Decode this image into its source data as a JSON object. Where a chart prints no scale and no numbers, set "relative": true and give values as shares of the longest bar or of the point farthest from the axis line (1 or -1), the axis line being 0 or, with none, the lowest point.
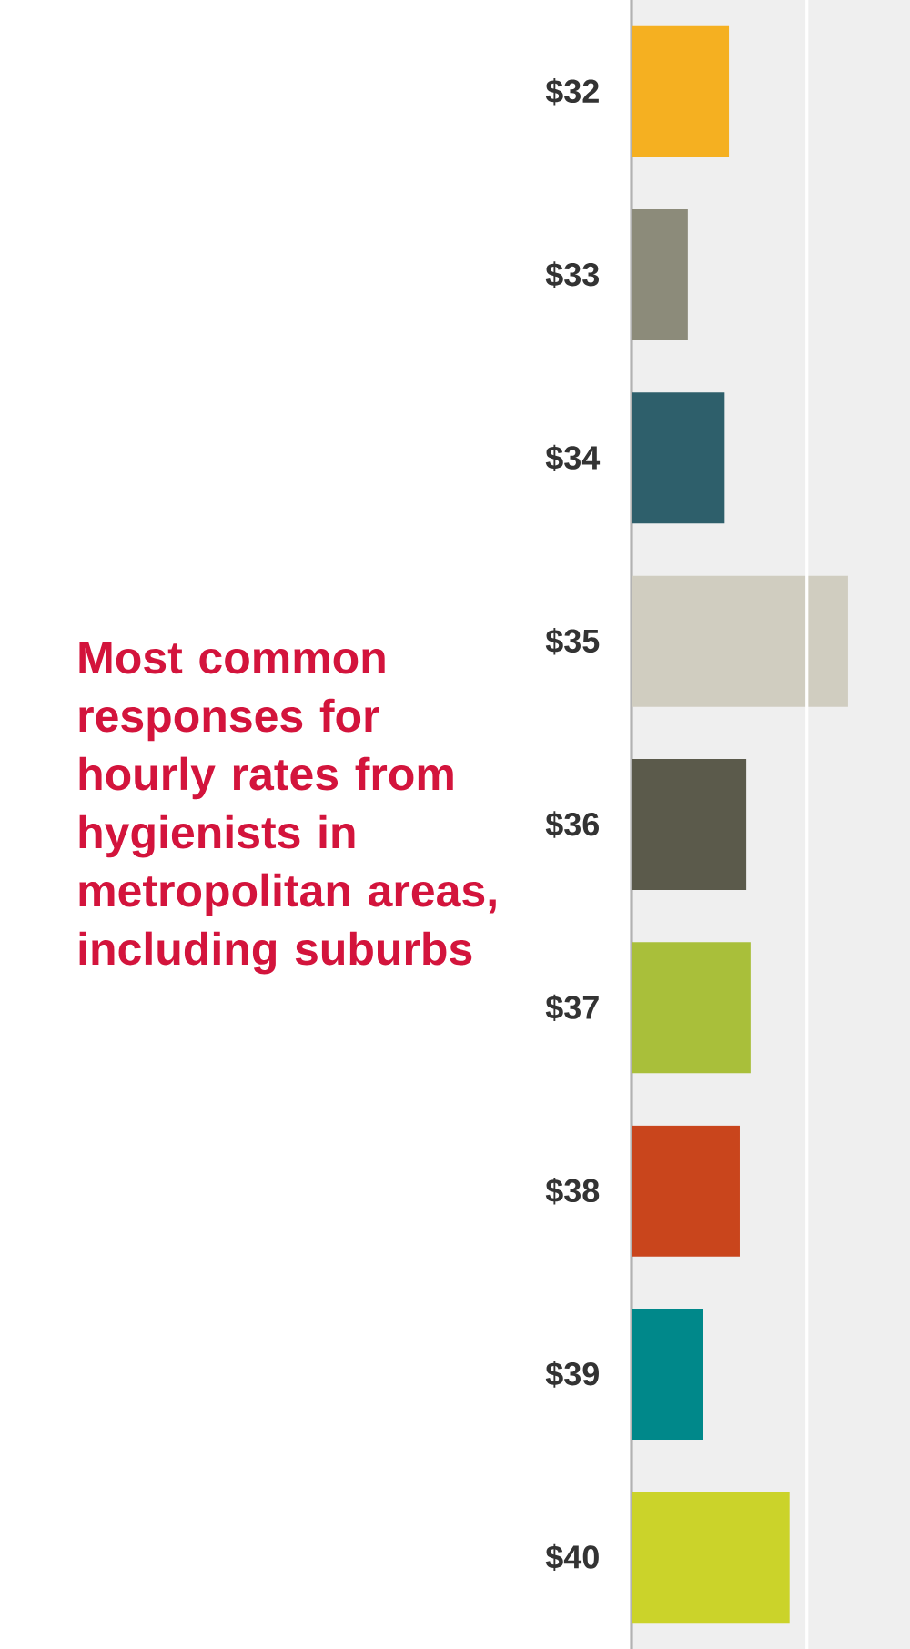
{
  "chart_data": {
    "type": "bar",
    "orientation": "horizontal",
    "relative": true,
    "title": "Most common responses for hourly rates from hygienists in metropolitan areas, including suburbs",
    "categories": [
      "$32",
      "$33",
      "$34",
      "$35",
      "$36",
      "$37",
      "$38",
      "$39",
      "$40"
    ],
    "values": [
      0.45,
      0.26,
      0.43,
      1,
      0.53,
      0.55,
      0.5,
      0.33,
      0.73
    ],
    "ref_lines": [
      {
        "axis": "x",
        "value": 0.81,
        "color": "#ffffff"
      }
    ],
    "colors": [
      "#f5b021",
      "#8c8b7a",
      "#2e5f6b",
      "#d0cdc0",
      "#5b5a4b",
      "#a9bf3a",
      "#c9451c",
      "#00888a",
      "#cbd32a"
    ]
  }
}
